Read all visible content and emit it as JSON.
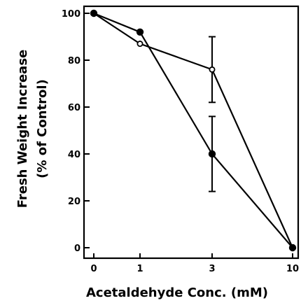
{
  "chart_data": {
    "type": "line",
    "xlabel": "Acetaldehyde Conc. (mM)",
    "ylabel_line1": "Fresh Weight Increase",
    "ylabel_line2": "(% of Control)",
    "x": [
      "0",
      "1",
      "3",
      "10"
    ],
    "ylim": [
      0,
      100
    ],
    "yticks": [
      0,
      20,
      40,
      60,
      80,
      100
    ],
    "grid": false,
    "series": [
      {
        "marker": "filled-circle",
        "values": [
          100,
          92,
          40,
          0
        ],
        "error_bars": [
          null,
          null,
          [
            24,
            56
          ],
          null
        ]
      },
      {
        "marker": "open-circle",
        "values": [
          100,
          87,
          76,
          0
        ],
        "error_bars": [
          null,
          null,
          [
            62,
            90
          ],
          null
        ]
      }
    ],
    "colors": {
      "line": "#000000",
      "open_marker_fill": "#ffffff"
    }
  }
}
